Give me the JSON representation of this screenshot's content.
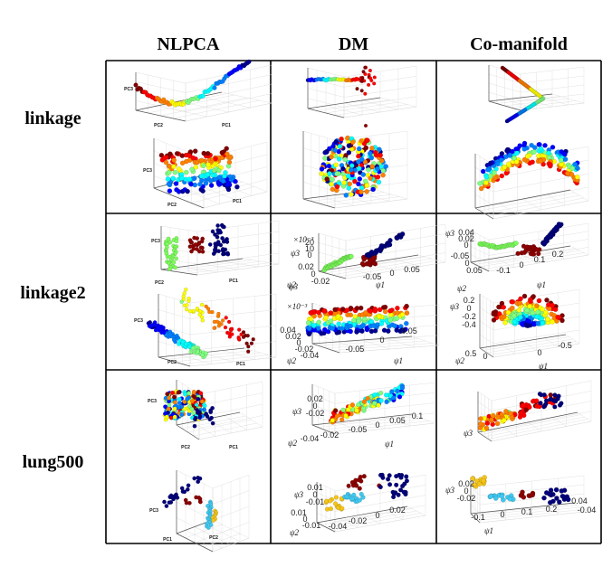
{
  "columns": [
    "NLPCA",
    "DM",
    "Co-manifold"
  ],
  "rows": [
    "linkage",
    "linkage2",
    "lung500"
  ],
  "axis": {
    "pc1": "PC1",
    "pc2": "PC2",
    "pc3": "PC3",
    "psi1": "ψ1",
    "psi2": "ψ2",
    "psi3": "ψ3",
    "exp3": "×10⁻³"
  },
  "ticks": {
    "l2_dm_top_z": [
      "20",
      "10",
      "0"
    ],
    "l2_dm_top_y": [
      "0.02",
      "0",
      "-0.02"
    ],
    "l2_dm_top_x": [
      "0.05",
      "0",
      "-0.05"
    ],
    "l2_dm_bot_y": [
      "0.04",
      "0.02",
      "0",
      "-0.02",
      "-0.04"
    ],
    "l2_dm_bot_x": [
      "-0.05",
      "0",
      "0.05"
    ],
    "l2_co_top_z": [
      "0.04",
      "0.02",
      "0"
    ],
    "l2_co_top_y": [
      "-0.05",
      "0",
      "0.05"
    ],
    "l2_co_top_x": [
      "-0.1",
      "0",
      "0.1",
      "0.2"
    ],
    "l2_co_bot_z": [
      "0.2",
      "0",
      "-0.2",
      "-0.4"
    ],
    "l2_co_bot_y": [
      "0.5",
      "0"
    ],
    "l2_co_bot_x": [
      "0",
      "-0.5"
    ],
    "lu_dm_top_z": [
      "0.02",
      "0",
      "-0.02"
    ],
    "lu_dm_top_y": [
      "-0.04",
      "-0.02"
    ],
    "lu_dm_top_x": [
      "-0.05",
      "0",
      "0.05",
      "0.1"
    ],
    "lu_dm_bot_z": [
      "0.01",
      "0",
      "-0.01"
    ],
    "lu_dm_bot_y": [
      "0.01",
      "0",
      "-0.01"
    ],
    "lu_dm_bot_x": [
      "-0.04",
      "-0.02",
      "0",
      "0.02"
    ],
    "lu_co_bot_z": [
      "0.02",
      "0",
      "-0.02"
    ],
    "lu_co_bot_x": [
      "-0.1",
      "0",
      "0.1",
      "0.2"
    ],
    "lu_co_bot_y": [
      "0.04",
      "-0.04"
    ]
  },
  "colors": {
    "jet": [
      "#00008f",
      "#0000ff",
      "#0080ff",
      "#00ffff",
      "#80ff80",
      "#ffff00",
      "#ff8000",
      "#ff0000",
      "#800000"
    ],
    "light_green": "#7cfc5a",
    "dark_red": "#8b0000",
    "navy": "#00007a",
    "cyan": "#40c8f0",
    "yellow": "#f5c518",
    "grid": "#d9d9d9"
  }
}
